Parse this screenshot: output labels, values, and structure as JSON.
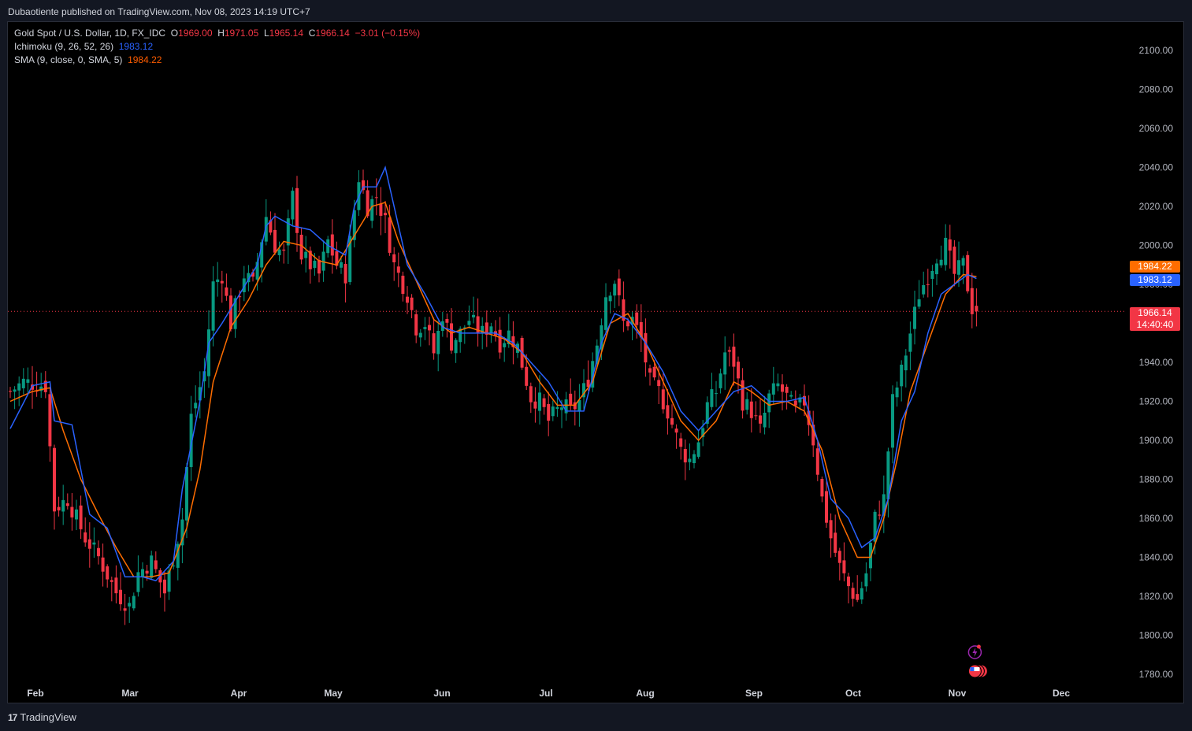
{
  "header": {
    "publisher_line": "Dubaotiente published on TradingView.com, Nov 08, 2023 14:19 UTC+7"
  },
  "legend": {
    "symbol": "Gold Spot / U.S. Dollar, 1D, FX_IDC",
    "o_label": "O",
    "o_value": "1969.00",
    "h_label": "H",
    "h_value": "1971.05",
    "l_label": "L",
    "l_value": "1965.14",
    "c_label": "C",
    "c_value": "1966.14",
    "change": "−3.01 (−0.15%)",
    "ichimoku_label": "Ichimoku (9, 26, 52, 26)",
    "ichimoku_value": "1983.12",
    "sma_label": "SMA (9, close, 0, SMA, 5)",
    "sma_value": "1984.22"
  },
  "price_labels": {
    "sma": "1984.22",
    "ichimoku": "1983.12",
    "last": "1966.14",
    "countdown": "14:40:40"
  },
  "footer": {
    "brand": "TradingView",
    "logo_text": "17"
  },
  "colors": {
    "up": "#089981",
    "down": "#f23645",
    "ichimoku": "#2962ff",
    "sma": "#ff6d00",
    "background": "#000000",
    "grid_text": "#b2b5be"
  },
  "chart_data": {
    "type": "candlestick",
    "ylim": [
      1775,
      2115
    ],
    "y_ticks": [
      1780,
      1800,
      1820,
      1840,
      1860,
      1880,
      1900,
      1920,
      1940,
      1960,
      1980,
      2000,
      2020,
      2040,
      2060,
      2080,
      2100
    ],
    "x_ticks": [
      "Feb",
      "Mar",
      "Apr",
      "May",
      "Jun",
      "Jul",
      "Aug",
      "Sep",
      "Oct",
      "Nov",
      "Dec"
    ],
    "last_price": 1966.14,
    "series": [
      {
        "name": "Ichimoku (9, 26, 52, 26)",
        "last": 1983.12
      },
      {
        "name": "SMA (9, close, 0, SMA, 5)",
        "last": 1984.22
      }
    ],
    "close_anchors": [
      {
        "d": 0,
        "c": 1925
      },
      {
        "d": 3,
        "c": 1930
      },
      {
        "d": 8,
        "c": 1928
      },
      {
        "d": 10,
        "c": 1865
      },
      {
        "d": 13,
        "c": 1870
      },
      {
        "d": 17,
        "c": 1850
      },
      {
        "d": 20,
        "c": 1840
      },
      {
        "d": 24,
        "c": 1822
      },
      {
        "d": 27,
        "c": 1815
      },
      {
        "d": 29,
        "c": 1832
      },
      {
        "d": 32,
        "c": 1838
      },
      {
        "d": 35,
        "c": 1822
      },
      {
        "d": 37,
        "c": 1840
      },
      {
        "d": 39,
        "c": 1860
      },
      {
        "d": 41,
        "c": 1912
      },
      {
        "d": 44,
        "c": 1935
      },
      {
        "d": 46,
        "c": 1980
      },
      {
        "d": 48,
        "c": 1985
      },
      {
        "d": 50,
        "c": 1960
      },
      {
        "d": 53,
        "c": 1985
      },
      {
        "d": 55,
        "c": 1980
      },
      {
        "d": 58,
        "c": 2015
      },
      {
        "d": 60,
        "c": 2000
      },
      {
        "d": 62,
        "c": 1995
      },
      {
        "d": 64,
        "c": 2025
      },
      {
        "d": 66,
        "c": 1995
      },
      {
        "d": 68,
        "c": 1990
      },
      {
        "d": 70,
        "c": 1985
      },
      {
        "d": 72,
        "c": 2002
      },
      {
        "d": 74,
        "c": 1990
      },
      {
        "d": 76,
        "c": 1985
      },
      {
        "d": 79,
        "c": 2035
      },
      {
        "d": 81,
        "c": 2020
      },
      {
        "d": 83,
        "c": 2025
      },
      {
        "d": 85,
        "c": 2012
      },
      {
        "d": 87,
        "c": 1990
      },
      {
        "d": 90,
        "c": 1975
      },
      {
        "d": 92,
        "c": 1958
      },
      {
        "d": 94,
        "c": 1960
      },
      {
        "d": 96,
        "c": 1945
      },
      {
        "d": 98,
        "c": 1965
      },
      {
        "d": 100,
        "c": 1950
      },
      {
        "d": 102,
        "c": 1955
      },
      {
        "d": 104,
        "c": 1962
      },
      {
        "d": 107,
        "c": 1955
      },
      {
        "d": 109,
        "c": 1960
      },
      {
        "d": 111,
        "c": 1950
      },
      {
        "d": 113,
        "c": 1955
      },
      {
        "d": 115,
        "c": 1948
      },
      {
        "d": 118,
        "c": 1922
      },
      {
        "d": 120,
        "c": 1920
      },
      {
        "d": 122,
        "c": 1910
      },
      {
        "d": 125,
        "c": 1918
      },
      {
        "d": 127,
        "c": 1915
      },
      {
        "d": 129,
        "c": 1920
      },
      {
        "d": 131,
        "c": 1932
      },
      {
        "d": 133,
        "c": 1950
      },
      {
        "d": 135,
        "c": 1975
      },
      {
        "d": 137,
        "c": 1982
      },
      {
        "d": 139,
        "c": 1960
      },
      {
        "d": 141,
        "c": 1962
      },
      {
        "d": 143,
        "c": 1952
      },
      {
        "d": 145,
        "c": 1930
      },
      {
        "d": 147,
        "c": 1925
      },
      {
        "d": 149,
        "c": 1915
      },
      {
        "d": 152,
        "c": 1895
      },
      {
        "d": 154,
        "c": 1890
      },
      {
        "d": 156,
        "c": 1900
      },
      {
        "d": 158,
        "c": 1918
      },
      {
        "d": 160,
        "c": 1925
      },
      {
        "d": 162,
        "c": 1945
      },
      {
        "d": 164,
        "c": 1940
      },
      {
        "d": 166,
        "c": 1920
      },
      {
        "d": 168,
        "c": 1915
      },
      {
        "d": 170,
        "c": 1905
      },
      {
        "d": 172,
        "c": 1922
      },
      {
        "d": 174,
        "c": 1928
      },
      {
        "d": 176,
        "c": 1922
      },
      {
        "d": 178,
        "c": 1915
      },
      {
        "d": 180,
        "c": 1920
      },
      {
        "d": 182,
        "c": 1900
      },
      {
        "d": 184,
        "c": 1870
      },
      {
        "d": 186,
        "c": 1850
      },
      {
        "d": 188,
        "c": 1835
      },
      {
        "d": 190,
        "c": 1825
      },
      {
        "d": 192,
        "c": 1818
      },
      {
        "d": 194,
        "c": 1832
      },
      {
        "d": 196,
        "c": 1860
      },
      {
        "d": 198,
        "c": 1870
      },
      {
        "d": 200,
        "c": 1920
      },
      {
        "d": 202,
        "c": 1935
      },
      {
        "d": 204,
        "c": 1955
      },
      {
        "d": 206,
        "c": 1975
      },
      {
        "d": 208,
        "c": 1985
      },
      {
        "d": 210,
        "c": 1995
      },
      {
        "d": 212,
        "c": 2000
      },
      {
        "d": 214,
        "c": 1985
      },
      {
        "d": 216,
        "c": 1990
      },
      {
        "d": 218,
        "c": 1968
      },
      {
        "d": 219,
        "c": 1966
      }
    ],
    "ichimoku_anchors": [
      {
        "d": 0,
        "v": 1906
      },
      {
        "d": 5,
        "v": 1928
      },
      {
        "d": 9,
        "v": 1930
      },
      {
        "d": 10,
        "v": 1910
      },
      {
        "d": 14,
        "v": 1908
      },
      {
        "d": 18,
        "v": 1862
      },
      {
        "d": 22,
        "v": 1855
      },
      {
        "d": 26,
        "v": 1830
      },
      {
        "d": 30,
        "v": 1830
      },
      {
        "d": 33,
        "v": 1828
      },
      {
        "d": 37,
        "v": 1838
      },
      {
        "d": 39,
        "v": 1875
      },
      {
        "d": 43,
        "v": 1920
      },
      {
        "d": 45,
        "v": 1950
      },
      {
        "d": 48,
        "v": 1960
      },
      {
        "d": 52,
        "v": 1975
      },
      {
        "d": 56,
        "v": 1990
      },
      {
        "d": 58,
        "v": 2010
      },
      {
        "d": 60,
        "v": 2015
      },
      {
        "d": 64,
        "v": 2010
      },
      {
        "d": 68,
        "v": 2008
      },
      {
        "d": 72,
        "v": 2000
      },
      {
        "d": 76,
        "v": 1995
      },
      {
        "d": 78,
        "v": 2020
      },
      {
        "d": 80,
        "v": 2030
      },
      {
        "d": 83,
        "v": 2030
      },
      {
        "d": 85,
        "v": 2040
      },
      {
        "d": 87,
        "v": 2020
      },
      {
        "d": 90,
        "v": 1990
      },
      {
        "d": 94,
        "v": 1975
      },
      {
        "d": 98,
        "v": 1958
      },
      {
        "d": 102,
        "v": 1955
      },
      {
        "d": 106,
        "v": 1955
      },
      {
        "d": 110,
        "v": 1955
      },
      {
        "d": 114,
        "v": 1950
      },
      {
        "d": 118,
        "v": 1940
      },
      {
        "d": 122,
        "v": 1930
      },
      {
        "d": 126,
        "v": 1915
      },
      {
        "d": 130,
        "v": 1915
      },
      {
        "d": 134,
        "v": 1950
      },
      {
        "d": 137,
        "v": 1965
      },
      {
        "d": 140,
        "v": 1962
      },
      {
        "d": 144,
        "v": 1950
      },
      {
        "d": 148,
        "v": 1935
      },
      {
        "d": 152,
        "v": 1915
      },
      {
        "d": 156,
        "v": 1905
      },
      {
        "d": 160,
        "v": 1915
      },
      {
        "d": 164,
        "v": 1925
      },
      {
        "d": 168,
        "v": 1928
      },
      {
        "d": 172,
        "v": 1920
      },
      {
        "d": 176,
        "v": 1920
      },
      {
        "d": 180,
        "v": 1922
      },
      {
        "d": 183,
        "v": 1900
      },
      {
        "d": 186,
        "v": 1870
      },
      {
        "d": 190,
        "v": 1860
      },
      {
        "d": 193,
        "v": 1845
      },
      {
        "d": 196,
        "v": 1850
      },
      {
        "d": 199,
        "v": 1870
      },
      {
        "d": 202,
        "v": 1910
      },
      {
        "d": 205,
        "v": 1925
      },
      {
        "d": 208,
        "v": 1955
      },
      {
        "d": 211,
        "v": 1975
      },
      {
        "d": 214,
        "v": 1980
      },
      {
        "d": 217,
        "v": 1985
      },
      {
        "d": 219,
        "v": 1983
      }
    ],
    "sma_anchors": [
      {
        "d": 0,
        "v": 1920
      },
      {
        "d": 5,
        "v": 1925
      },
      {
        "d": 9,
        "v": 1927
      },
      {
        "d": 12,
        "v": 1905
      },
      {
        "d": 16,
        "v": 1880
      },
      {
        "d": 20,
        "v": 1862
      },
      {
        "d": 24,
        "v": 1845
      },
      {
        "d": 28,
        "v": 1830
      },
      {
        "d": 32,
        "v": 1830
      },
      {
        "d": 36,
        "v": 1832
      },
      {
        "d": 40,
        "v": 1855
      },
      {
        "d": 43,
        "v": 1885
      },
      {
        "d": 46,
        "v": 1930
      },
      {
        "d": 50,
        "v": 1958
      },
      {
        "d": 54,
        "v": 1972
      },
      {
        "d": 58,
        "v": 1990
      },
      {
        "d": 62,
        "v": 2002
      },
      {
        "d": 66,
        "v": 2000
      },
      {
        "d": 70,
        "v": 1992
      },
      {
        "d": 74,
        "v": 1990
      },
      {
        "d": 78,
        "v": 2005
      },
      {
        "d": 82,
        "v": 2020
      },
      {
        "d": 85,
        "v": 2022
      },
      {
        "d": 88,
        "v": 2002
      },
      {
        "d": 92,
        "v": 1982
      },
      {
        "d": 96,
        "v": 1962
      },
      {
        "d": 100,
        "v": 1955
      },
      {
        "d": 104,
        "v": 1958
      },
      {
        "d": 108,
        "v": 1955
      },
      {
        "d": 112,
        "v": 1952
      },
      {
        "d": 116,
        "v": 1945
      },
      {
        "d": 120,
        "v": 1930
      },
      {
        "d": 124,
        "v": 1918
      },
      {
        "d": 128,
        "v": 1918
      },
      {
        "d": 132,
        "v": 1930
      },
      {
        "d": 136,
        "v": 1960
      },
      {
        "d": 140,
        "v": 1965
      },
      {
        "d": 144,
        "v": 1950
      },
      {
        "d": 148,
        "v": 1930
      },
      {
        "d": 152,
        "v": 1910
      },
      {
        "d": 156,
        "v": 1900
      },
      {
        "d": 160,
        "v": 1910
      },
      {
        "d": 164,
        "v": 1930
      },
      {
        "d": 168,
        "v": 1925
      },
      {
        "d": 172,
        "v": 1918
      },
      {
        "d": 176,
        "v": 1920
      },
      {
        "d": 180,
        "v": 1915
      },
      {
        "d": 184,
        "v": 1895
      },
      {
        "d": 188,
        "v": 1860
      },
      {
        "d": 192,
        "v": 1840
      },
      {
        "d": 195,
        "v": 1840
      },
      {
        "d": 198,
        "v": 1860
      },
      {
        "d": 201,
        "v": 1890
      },
      {
        "d": 204,
        "v": 1925
      },
      {
        "d": 208,
        "v": 1950
      },
      {
        "d": 212,
        "v": 1975
      },
      {
        "d": 216,
        "v": 1985
      },
      {
        "d": 219,
        "v": 1984
      }
    ]
  }
}
